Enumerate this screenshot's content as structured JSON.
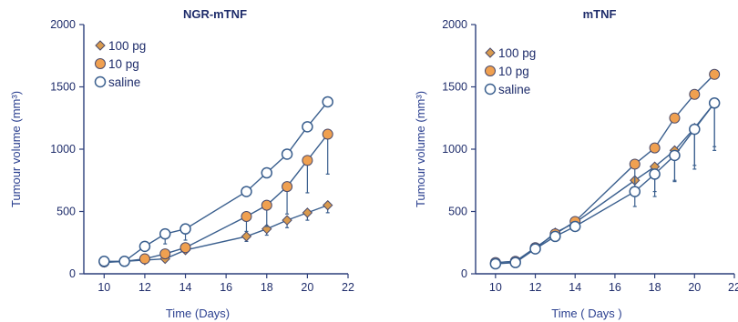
{
  "chart_data": [
    {
      "type": "line",
      "title": "NGR-mTNF",
      "xlabel": "Time (Days)",
      "ylabel": "Tumour volume (mm³)",
      "xlim": [
        9,
        22
      ],
      "ylim": [
        0,
        2000
      ],
      "xticks": [
        10,
        12,
        14,
        16,
        18,
        20,
        22
      ],
      "yticks": [
        0,
        500,
        1000,
        1500,
        2000
      ],
      "legend_position": "top-left",
      "series": [
        {
          "name": "100 pg",
          "marker": "diamond",
          "color": "#d99a4e",
          "x": [
            10,
            11,
            12,
            13,
            14,
            17,
            18,
            19,
            20,
            21
          ],
          "y": [
            90,
            100,
            110,
            120,
            190,
            300,
            360,
            430,
            490,
            550
          ],
          "err": [
            0,
            0,
            0,
            0,
            0,
            40,
            50,
            60,
            60,
            60
          ]
        },
        {
          "name": "10 pg",
          "marker": "circle-filled",
          "color": "#f0a050",
          "x": [
            10,
            11,
            12,
            13,
            14,
            17,
            18,
            19,
            20,
            21
          ],
          "y": [
            95,
            100,
            120,
            160,
            210,
            460,
            550,
            700,
            910,
            1120
          ],
          "err": [
            0,
            0,
            0,
            0,
            0,
            120,
            170,
            220,
            260,
            320
          ]
        },
        {
          "name": "saline",
          "marker": "circle-open",
          "color": "#ffffff",
          "x": [
            10,
            11,
            12,
            13,
            14,
            17,
            18,
            19,
            20,
            21
          ],
          "y": [
            100,
            100,
            220,
            320,
            360,
            660,
            810,
            960,
            1180,
            1380
          ],
          "err": [
            0,
            0,
            0,
            80,
            90,
            0,
            0,
            0,
            0,
            0
          ]
        }
      ]
    },
    {
      "type": "line",
      "title": "mTNF",
      "xlabel": "Time ( Days )",
      "ylabel": "Tumour volume (mm³)",
      "xlim": [
        9,
        22
      ],
      "ylim": [
        0,
        2000
      ],
      "xticks": [
        10,
        12,
        14,
        16,
        18,
        20,
        22
      ],
      "yticks": [
        0,
        500,
        1000,
        1500,
        2000
      ],
      "legend_position": "top-left",
      "series": [
        {
          "name": "100 pg",
          "marker": "diamond",
          "color": "#d99a4e",
          "x": [
            10,
            11,
            12,
            13,
            14,
            17,
            18,
            19,
            20,
            21
          ],
          "y": [
            90,
            100,
            200,
            330,
            410,
            750,
            860,
            990,
            1170,
            1370
          ],
          "err": [
            0,
            0,
            0,
            0,
            0,
            0,
            200,
            250,
            300,
            350
          ]
        },
        {
          "name": "10 pg",
          "marker": "circle-filled",
          "color": "#f0a050",
          "x": [
            10,
            11,
            12,
            13,
            14,
            17,
            18,
            19,
            20,
            21
          ],
          "y": [
            90,
            100,
            210,
            320,
            420,
            880,
            1010,
            1250,
            1440,
            1600
          ],
          "err": [
            0,
            0,
            0,
            0,
            0,
            200,
            0,
            0,
            0,
            0
          ]
        },
        {
          "name": "saline",
          "marker": "circle-open",
          "color": "#ffffff",
          "x": [
            10,
            11,
            12,
            13,
            14,
            17,
            18,
            19,
            20,
            21
          ],
          "y": [
            80,
            90,
            200,
            300,
            380,
            660,
            800,
            950,
            1160,
            1370
          ],
          "err": [
            0,
            0,
            0,
            0,
            0,
            120,
            180,
            200,
            320,
            380
          ]
        }
      ]
    }
  ]
}
